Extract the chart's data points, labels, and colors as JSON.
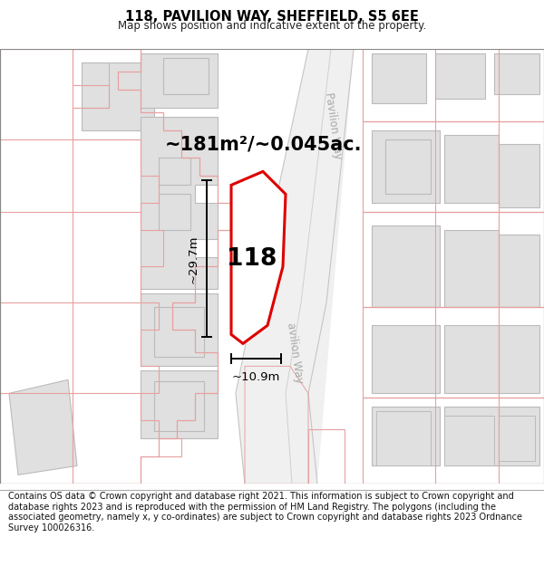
{
  "title": "118, PAVILION WAY, SHEFFIELD, S5 6EE",
  "subtitle": "Map shows position and indicative extent of the property.",
  "footer": "Contains OS data © Crown copyright and database right 2021. This information is subject to Crown copyright and database rights 2023 and is reproduced with the permission of HM Land Registry. The polygons (including the associated geometry, namely x, y co-ordinates) are subject to Crown copyright and database rights 2023 Ordnance Survey 100026316.",
  "area_label": "~181m²/~0.045ac.",
  "property_number": "118",
  "dim_height": "~29.7m",
  "dim_width": "~10.9m",
  "street_label1": "Pavilion Way",
  "street_label2": "avilion Way",
  "bg_color": "#ffffff",
  "building_fill": "#e0e0e0",
  "building_stroke": "#bbbbbb",
  "road_line_color": "#c8c8c8",
  "highlight_color": "#dd0000",
  "parcel_stroke": "#e8a0a0",
  "parcel_fill": "#ffffff"
}
